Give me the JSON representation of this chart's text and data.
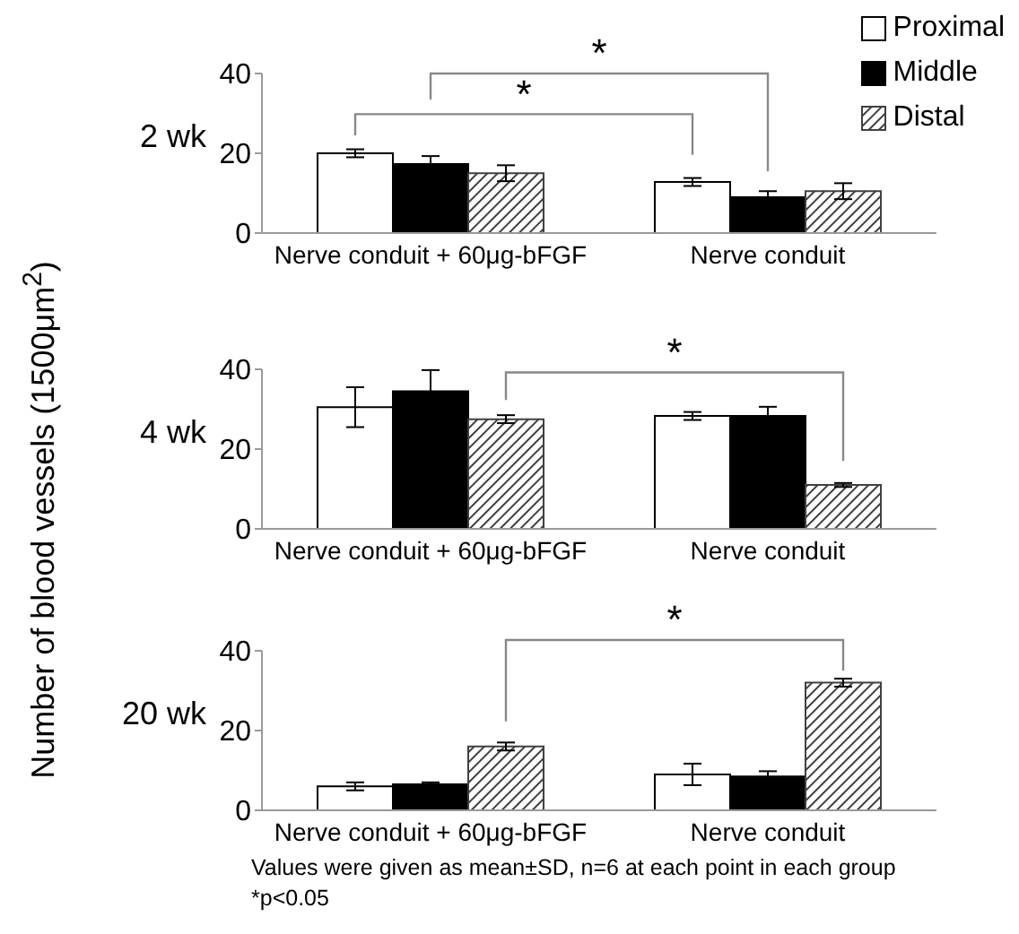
{
  "chart_data": [
    {
      "type": "bar",
      "title": "2 wk",
      "categories": [
        "Nerve conduit + 60μg-bFGF",
        "Nerve conduit"
      ],
      "series": [
        {
          "name": "Proximal",
          "color": "#ffffff",
          "values": [
            20,
            12.8
          ],
          "errors": [
            1,
            1
          ]
        },
        {
          "name": "Middle",
          "color": "#000000",
          "values": [
            17.3,
            9
          ],
          "errors": [
            2,
            1.5
          ]
        },
        {
          "name": "Distal",
          "color": "#404040",
          "values": [
            15,
            10.5
          ],
          "errors": [
            2,
            2
          ]
        }
      ],
      "ylim": [
        0,
        40
      ],
      "yticks": [
        0,
        20,
        40
      ],
      "legend": "top right",
      "annotations": [
        "*",
        "*"
      ]
    },
    {
      "type": "bar",
      "title": "4 wk",
      "ylabel": "Number of blood vessels (1500μm$^{2}$)",
      "categories": [
        "Nerve conduit + 60μg-bFGF",
        "Nerve conduit"
      ],
      "series": [
        {
          "color": "#ffffff",
          "values": [
            30.5,
            28.3
          ],
          "errors": [
            5,
            1
          ]
        },
        {
          "color": "#000000",
          "values": [
            34.5,
            28.3
          ],
          "errors": [
            5.3,
            2.3
          ]
        },
        {
          "color": "#404040",
          "values": [
            27.5,
            11
          ],
          "errors": [
            1,
            0.5
          ]
        }
      ],
      "ylim": [
        0,
        40
      ],
      "yticks": [
        0,
        20,
        40
      ],
      "annotations": [
        "*"
      ]
    },
    {
      "type": "bar",
      "title": "20 wk",
      "categories": [
        "Nerve conduit + 60μg-bFGF",
        "Nerve conduit"
      ],
      "series": [
        {
          "color": "#ffffff",
          "values": [
            6,
            9
          ],
          "errors": [
            1,
            2.7
          ]
        },
        {
          "color": "#000000",
          "values": [
            6.5,
            8.5
          ],
          "errors": [
            0.5,
            1.3
          ]
        },
        {
          "color": "#404040",
          "values": [
            16,
            32
          ],
          "errors": [
            1,
            1
          ]
        }
      ],
      "ylim": [
        0,
        40
      ],
      "yticks": [
        0,
        20,
        40
      ],
      "annotations": [
        "*",
        "Values were given as mean±SD, n=6 at each point in each group",
        "*p<0.05"
      ]
    }
  ]
}
